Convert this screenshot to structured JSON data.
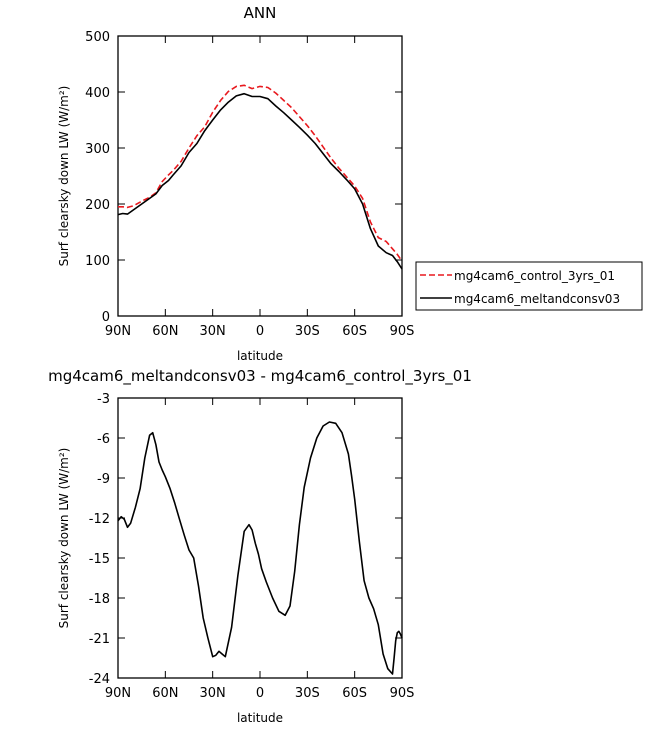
{
  "chart_data": [
    {
      "type": "line",
      "title": "ANN",
      "xlabel": "latitude",
      "ylabel": "Surf clearsky down LW (W/m²)",
      "x_tick_labels": [
        "90N",
        "60N",
        "30N",
        "0",
        "30S",
        "60S",
        "90S"
      ],
      "x_tick_values": [
        90,
        60,
        30,
        0,
        -30,
        -60,
        -90
      ],
      "xlim": [
        90,
        -90
      ],
      "ylim": [
        0,
        500
      ],
      "y_ticks": [
        0,
        100,
        200,
        300,
        400,
        500
      ],
      "grid": false,
      "legend_position": "right",
      "series": [
        {
          "name": "mg4cam6_control_3yrs_01",
          "color": "#e8191e",
          "dash": "dashed",
          "x": [
            90,
            87,
            84,
            80,
            75,
            70,
            66,
            62,
            58,
            55,
            50,
            45,
            40,
            35,
            30,
            25,
            20,
            15,
            10,
            5,
            0,
            -5,
            -10,
            -15,
            -20,
            -25,
            -30,
            -35,
            -40,
            -45,
            -50,
            -55,
            -60,
            -65,
            -70,
            -75,
            -80,
            -84,
            -87,
            -90
          ],
          "y": [
            195,
            195,
            194,
            197,
            205,
            212,
            220,
            240,
            252,
            260,
            276,
            300,
            322,
            338,
            364,
            385,
            401,
            410,
            412,
            406,
            410,
            408,
            398,
            385,
            372,
            356,
            340,
            322,
            302,
            282,
            264,
            248,
            232,
            210,
            168,
            140,
            133,
            120,
            110,
            98
          ]
        },
        {
          "name": "mg4cam6_meltandconsv03",
          "color": "#000000",
          "dash": "solid",
          "x": [
            90,
            87,
            84,
            80,
            75,
            70,
            66,
            62,
            58,
            55,
            50,
            45,
            40,
            35,
            30,
            25,
            20,
            15,
            10,
            5,
            0,
            -5,
            -10,
            -15,
            -20,
            -25,
            -30,
            -35,
            -40,
            -45,
            -50,
            -55,
            -60,
            -65,
            -70,
            -75,
            -80,
            -84,
            -87,
            -90
          ],
          "y": [
            181,
            183,
            182,
            190,
            200,
            210,
            218,
            233,
            242,
            252,
            268,
            292,
            308,
            331,
            350,
            368,
            382,
            393,
            397,
            392,
            392,
            388,
            375,
            363,
            350,
            337,
            323,
            308,
            290,
            272,
            258,
            243,
            227,
            200,
            156,
            125,
            113,
            108,
            97,
            84
          ]
        }
      ]
    },
    {
      "type": "line",
      "title": "mg4cam6_meltandconsv03 - mg4cam6_control_3yrs_01",
      "xlabel": "latitude",
      "ylabel": "Surf clearsky down LW (W/m²)",
      "x_tick_labels": [
        "90N",
        "60N",
        "30N",
        "0",
        "30S",
        "60S",
        "90S"
      ],
      "x_tick_values": [
        90,
        60,
        30,
        0,
        -30,
        -60,
        -90
      ],
      "xlim": [
        90,
        -90
      ],
      "ylim": [
        -24,
        -3
      ],
      "y_ticks": [
        -3,
        -6,
        -9,
        -12,
        -15,
        -18,
        -21,
        -24
      ],
      "grid": false,
      "series": [
        {
          "color": "#000000",
          "dash": "solid",
          "x": [
            90,
            88,
            86,
            84,
            82,
            79,
            76,
            73,
            70,
            68,
            66,
            64,
            62,
            60,
            57,
            54,
            51,
            48,
            45,
            42,
            39,
            36,
            33,
            30,
            28,
            26,
            24,
            22,
            18,
            14,
            10,
            7,
            5,
            3,
            1,
            -1,
            -4,
            -8,
            -12,
            -16,
            -19,
            -22,
            -25,
            -28,
            -32,
            -36,
            -40,
            -44,
            -48,
            -52,
            -56,
            -58,
            -60,
            -63,
            -66,
            -69,
            -72,
            -75,
            -78,
            -81,
            -84,
            -85,
            -86,
            -87,
            -88,
            -89,
            -90
          ],
          "y": [
            -12.2,
            -11.9,
            -12.1,
            -12.7,
            -12.4,
            -11.2,
            -9.8,
            -7.5,
            -5.8,
            -5.6,
            -6.5,
            -7.8,
            -8.4,
            -8.9,
            -9.8,
            -10.9,
            -12.1,
            -13.3,
            -14.4,
            -15.0,
            -17.1,
            -19.5,
            -21.0,
            -22.4,
            -22.3,
            -22.0,
            -22.2,
            -22.4,
            -20.2,
            -16.3,
            -13.0,
            -12.5,
            -12.9,
            -13.9,
            -14.7,
            -15.8,
            -16.8,
            -18.0,
            -19.0,
            -19.3,
            -18.6,
            -16.0,
            -12.5,
            -9.7,
            -7.5,
            -6.0,
            -5.1,
            -4.8,
            -4.9,
            -5.6,
            -7.2,
            -8.8,
            -10.6,
            -13.8,
            -16.7,
            -18.0,
            -18.8,
            -20.0,
            -22.2,
            -23.3,
            -23.7,
            -22.5,
            -21.2,
            -20.6,
            -20.5,
            -20.7,
            -21.0
          ]
        }
      ]
    }
  ]
}
